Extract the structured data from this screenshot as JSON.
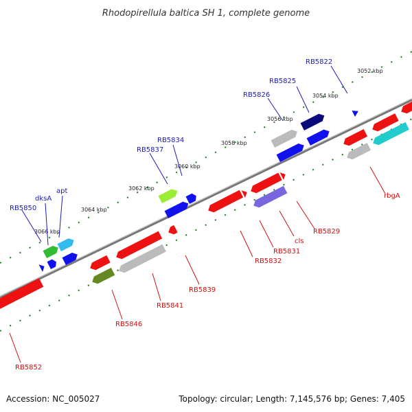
{
  "title": "Rhodopirellula baltica SH 1, complete genome",
  "footer": {
    "accession": "Accession: NC_005027",
    "stats": "Topology: circular; Length: 7,145,576 bp; Genes: 7,405"
  },
  "scale_labels": [
    "3052 kbp",
    "3054 kbp",
    "3056 kbp",
    "3058 kbp",
    "3060 kbp",
    "3062 kbp",
    "3064 kbp",
    "3066 kbp"
  ],
  "gene_labels_top": [
    "RB5822",
    "RB5825",
    "RB5826",
    "RB5834",
    "RB5837",
    "apt",
    "dksA",
    "RB5850"
  ],
  "gene_labels_bottom": [
    "rbgA",
    "RB5829",
    "cls",
    "RB5831",
    "RB5832",
    "RB5839",
    "RB5841",
    "RB5846",
    "RB5852"
  ],
  "colors": {
    "backbone": "#777777",
    "red": "#ee1111",
    "blue": "#1111ee",
    "navy": "#0a0a7a",
    "grey": "#bbbbbb",
    "cyan": "#22cccc",
    "lime": "#99ee33",
    "olive": "#668822",
    "green": "#33bb33",
    "skyblue": "#33bbee",
    "lavender": "#7766dd",
    "scale_dots": "#1a7a1a"
  }
}
